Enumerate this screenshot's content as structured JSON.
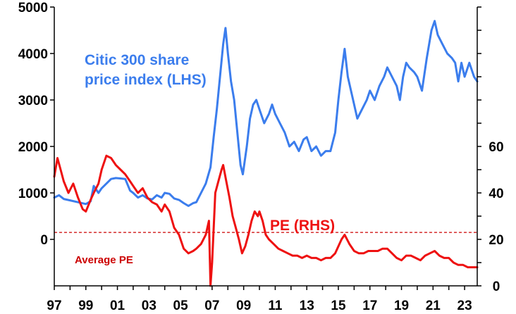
{
  "chart_data": {
    "type": "line",
    "title": "",
    "xlabel": "",
    "x_ticks": [
      "97",
      "99",
      "01",
      "03",
      "05",
      "07",
      "09",
      "11",
      "13",
      "15",
      "17",
      "19",
      "21",
      "23"
    ],
    "xlim": [
      1997.0,
      2023.8
    ],
    "y_left": {
      "lim": [
        -1000,
        5000
      ],
      "ticks": [
        "0",
        "1000",
        "2000",
        "3000",
        "4000",
        "5000"
      ],
      "tick_values": [
        0,
        1000,
        2000,
        3000,
        4000,
        5000
      ]
    },
    "y_right": {
      "lim": [
        0,
        120
      ],
      "ticks": [
        "0",
        "20",
        "40",
        "60"
      ],
      "tick_values": [
        0,
        20,
        40,
        60
      ]
    },
    "colors": {
      "index": "#3b7ded",
      "pe": "#ee1111",
      "avg": "#cc0000",
      "axis": "#000000"
    },
    "series": [
      {
        "name": "Citic 300 share price index (LHS)",
        "axis": "left",
        "color": "#3b7ded",
        "points": [
          [
            1997.0,
            900
          ],
          [
            1997.3,
            950
          ],
          [
            1997.6,
            870
          ],
          [
            1998.0,
            840
          ],
          [
            1998.5,
            800
          ],
          [
            1999.0,
            760
          ],
          [
            1999.3,
            820
          ],
          [
            1999.5,
            1150
          ],
          [
            1999.8,
            1000
          ],
          [
            2000.0,
            1100
          ],
          [
            2000.3,
            1200
          ],
          [
            2000.6,
            1300
          ],
          [
            2000.9,
            1320
          ],
          [
            2001.2,
            1310
          ],
          [
            2001.5,
            1300
          ],
          [
            2001.8,
            1050
          ],
          [
            2002.0,
            1000
          ],
          [
            2002.3,
            900
          ],
          [
            2002.6,
            950
          ],
          [
            2002.9,
            880
          ],
          [
            2003.2,
            860
          ],
          [
            2003.5,
            950
          ],
          [
            2003.8,
            900
          ],
          [
            2004.0,
            1000
          ],
          [
            2004.3,
            980
          ],
          [
            2004.6,
            880
          ],
          [
            2004.9,
            850
          ],
          [
            2005.2,
            780
          ],
          [
            2005.5,
            720
          ],
          [
            2005.8,
            780
          ],
          [
            2006.0,
            800
          ],
          [
            2006.3,
            1000
          ],
          [
            2006.6,
            1200
          ],
          [
            2006.9,
            1550
          ],
          [
            2007.1,
            2200
          ],
          [
            2007.3,
            2800
          ],
          [
            2007.5,
            3500
          ],
          [
            2007.7,
            4200
          ],
          [
            2007.85,
            4550
          ],
          [
            2008.0,
            4000
          ],
          [
            2008.2,
            3400
          ],
          [
            2008.4,
            3000
          ],
          [
            2008.6,
            2300
          ],
          [
            2008.8,
            1600
          ],
          [
            2008.95,
            1400
          ],
          [
            2009.2,
            2000
          ],
          [
            2009.4,
            2600
          ],
          [
            2009.6,
            2900
          ],
          [
            2009.8,
            3000
          ],
          [
            2010.0,
            2800
          ],
          [
            2010.3,
            2500
          ],
          [
            2010.6,
            2700
          ],
          [
            2010.8,
            2900
          ],
          [
            2011.0,
            2700
          ],
          [
            2011.3,
            2500
          ],
          [
            2011.6,
            2300
          ],
          [
            2011.9,
            2000
          ],
          [
            2012.2,
            2100
          ],
          [
            2012.5,
            1900
          ],
          [
            2012.8,
            2150
          ],
          [
            2013.0,
            2200
          ],
          [
            2013.3,
            1900
          ],
          [
            2013.6,
            2000
          ],
          [
            2013.9,
            1800
          ],
          [
            2014.2,
            1900
          ],
          [
            2014.5,
            1900
          ],
          [
            2014.8,
            2300
          ],
          [
            2015.0,
            3000
          ],
          [
            2015.2,
            3600
          ],
          [
            2015.4,
            4100
          ],
          [
            2015.6,
            3500
          ],
          [
            2015.8,
            3200
          ],
          [
            2016.0,
            2900
          ],
          [
            2016.2,
            2600
          ],
          [
            2016.5,
            2800
          ],
          [
            2016.8,
            3000
          ],
          [
            2017.0,
            3200
          ],
          [
            2017.3,
            3000
          ],
          [
            2017.6,
            3300
          ],
          [
            2017.9,
            3500
          ],
          [
            2018.1,
            3700
          ],
          [
            2018.4,
            3500
          ],
          [
            2018.7,
            3300
          ],
          [
            2018.9,
            3000
          ],
          [
            2019.1,
            3500
          ],
          [
            2019.3,
            3800
          ],
          [
            2019.5,
            3700
          ],
          [
            2019.8,
            3600
          ],
          [
            2020.0,
            3500
          ],
          [
            2020.3,
            3200
          ],
          [
            2020.6,
            3900
          ],
          [
            2020.9,
            4500
          ],
          [
            2021.1,
            4700
          ],
          [
            2021.3,
            4400
          ],
          [
            2021.6,
            4200
          ],
          [
            2021.9,
            4000
          ],
          [
            2022.2,
            3900
          ],
          [
            2022.4,
            3800
          ],
          [
            2022.6,
            3400
          ],
          [
            2022.8,
            3800
          ],
          [
            2023.0,
            3500
          ],
          [
            2023.3,
            3800
          ],
          [
            2023.6,
            3500
          ],
          [
            2023.8,
            3400
          ]
        ]
      },
      {
        "name": "PE (RHS)",
        "axis": "right",
        "color": "#ee1111",
        "points": [
          [
            1997.0,
            47
          ],
          [
            1997.2,
            55
          ],
          [
            1997.4,
            50
          ],
          [
            1997.6,
            45
          ],
          [
            1997.9,
            40
          ],
          [
            1998.2,
            44
          ],
          [
            1998.5,
            38
          ],
          [
            1998.8,
            33
          ],
          [
            1999.0,
            32
          ],
          [
            1999.3,
            37
          ],
          [
            1999.5,
            40
          ],
          [
            1999.8,
            44
          ],
          [
            2000.0,
            50
          ],
          [
            2000.3,
            56
          ],
          [
            2000.6,
            55
          ],
          [
            2000.9,
            52
          ],
          [
            2001.2,
            50
          ],
          [
            2001.5,
            48
          ],
          [
            2001.8,
            45
          ],
          [
            2002.0,
            43
          ],
          [
            2002.3,
            40
          ],
          [
            2002.6,
            42
          ],
          [
            2002.9,
            38
          ],
          [
            2003.2,
            36
          ],
          [
            2003.5,
            35
          ],
          [
            2003.8,
            32
          ],
          [
            2004.0,
            35
          ],
          [
            2004.3,
            32
          ],
          [
            2004.6,
            25
          ],
          [
            2004.9,
            22
          ],
          [
            2005.2,
            16
          ],
          [
            2005.5,
            14
          ],
          [
            2005.8,
            15
          ],
          [
            2006.0,
            16
          ],
          [
            2006.3,
            18
          ],
          [
            2006.6,
            22
          ],
          [
            2006.8,
            28
          ],
          [
            2006.9,
            0
          ],
          [
            2007.0,
            10
          ],
          [
            2007.2,
            40
          ],
          [
            2007.4,
            45
          ],
          [
            2007.6,
            50
          ],
          [
            2007.7,
            52
          ],
          [
            2007.9,
            45
          ],
          [
            2008.1,
            38
          ],
          [
            2008.3,
            30
          ],
          [
            2008.5,
            25
          ],
          [
            2008.7,
            20
          ],
          [
            2008.9,
            14
          ],
          [
            2009.1,
            17
          ],
          [
            2009.3,
            22
          ],
          [
            2009.5,
            28
          ],
          [
            2009.7,
            32
          ],
          [
            2009.9,
            30
          ],
          [
            2010.0,
            32
          ],
          [
            2010.2,
            28
          ],
          [
            2010.4,
            22
          ],
          [
            2010.6,
            20
          ],
          [
            2010.9,
            18
          ],
          [
            2011.2,
            16
          ],
          [
            2011.5,
            15
          ],
          [
            2011.8,
            14
          ],
          [
            2012.1,
            13
          ],
          [
            2012.4,
            13
          ],
          [
            2012.7,
            12
          ],
          [
            2013.0,
            13
          ],
          [
            2013.3,
            12
          ],
          [
            2013.6,
            12
          ],
          [
            2013.9,
            11
          ],
          [
            2014.2,
            12
          ],
          [
            2014.5,
            12
          ],
          [
            2014.8,
            14
          ],
          [
            2015.0,
            17
          ],
          [
            2015.2,
            20
          ],
          [
            2015.4,
            22
          ],
          [
            2015.7,
            18
          ],
          [
            2016.0,
            15
          ],
          [
            2016.3,
            14
          ],
          [
            2016.6,
            14
          ],
          [
            2016.9,
            15
          ],
          [
            2017.2,
            15
          ],
          [
            2017.5,
            15
          ],
          [
            2017.8,
            16
          ],
          [
            2018.1,
            16
          ],
          [
            2018.4,
            14
          ],
          [
            2018.7,
            12
          ],
          [
            2019.0,
            11
          ],
          [
            2019.3,
            13
          ],
          [
            2019.6,
            13
          ],
          [
            2019.9,
            12
          ],
          [
            2020.2,
            11
          ],
          [
            2020.5,
            13
          ],
          [
            2020.8,
            14
          ],
          [
            2021.1,
            15
          ],
          [
            2021.4,
            13
          ],
          [
            2021.7,
            12
          ],
          [
            2022.0,
            12
          ],
          [
            2022.3,
            10
          ],
          [
            2022.6,
            9
          ],
          [
            2022.9,
            9
          ],
          [
            2023.2,
            8
          ],
          [
            2023.5,
            8
          ],
          [
            2023.8,
            8
          ]
        ]
      }
    ],
    "reference_line": {
      "label": "Average PE",
      "axis": "right",
      "value": 23,
      "style": "dashed"
    },
    "annotations": {
      "index_line1": "Citic 300 share",
      "index_line2": "price index (LHS)",
      "pe_label": "PE (RHS)",
      "avg_label": "Average PE"
    },
    "grid": false,
    "legend": "none"
  }
}
